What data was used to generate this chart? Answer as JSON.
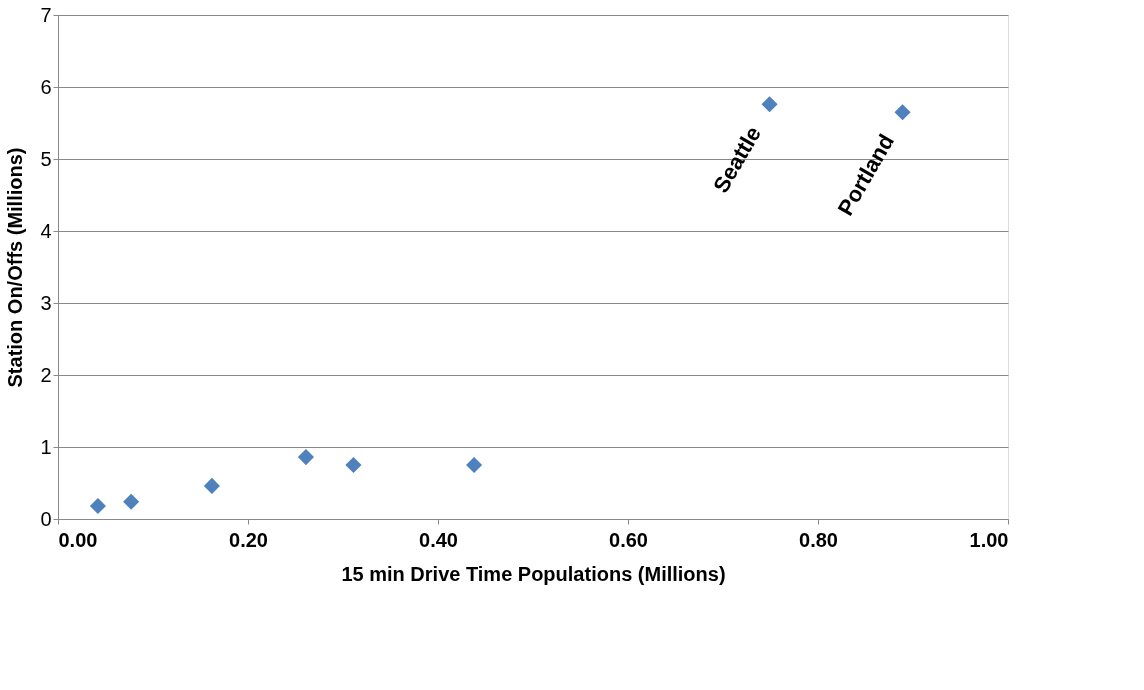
{
  "chart_data": {
    "type": "scatter",
    "xlabel": "15 min Drive Time Populations (Millions)",
    "ylabel": "Station On/Offs (Millions)",
    "x": [
      0.042,
      0.077,
      0.162,
      0.261,
      0.311,
      0.438,
      0.749,
      0.889
    ],
    "series": [
      {
        "color": "#4f81bd",
        "values": [
          0.18,
          0.24,
          0.46,
          0.86,
          0.75,
          0.75,
          5.76,
          5.65
        ]
      }
    ],
    "annotations": [
      {
        "text": "Seattle",
        "x": 0.749,
        "y": 5.76
      },
      {
        "text": "Portland",
        "x": 0.889,
        "y": 5.65
      }
    ],
    "xlim": [
      0,
      1
    ],
    "xticks": [
      {
        "value": 0,
        "label": "0.00"
      },
      {
        "value": 0.2,
        "label": "0.20"
      },
      {
        "value": 0.4,
        "label": "0.40"
      },
      {
        "value": 0.6,
        "label": "0.60"
      },
      {
        "value": 0.8,
        "label": "0.80"
      },
      {
        "value": 1,
        "label": "1.00"
      }
    ],
    "ylim": [
      0,
      7
    ],
    "yticks": [
      0,
      1,
      2,
      3,
      4,
      5,
      6,
      7
    ],
    "grid": "y",
    "marker": "diamond",
    "legend": false
  }
}
